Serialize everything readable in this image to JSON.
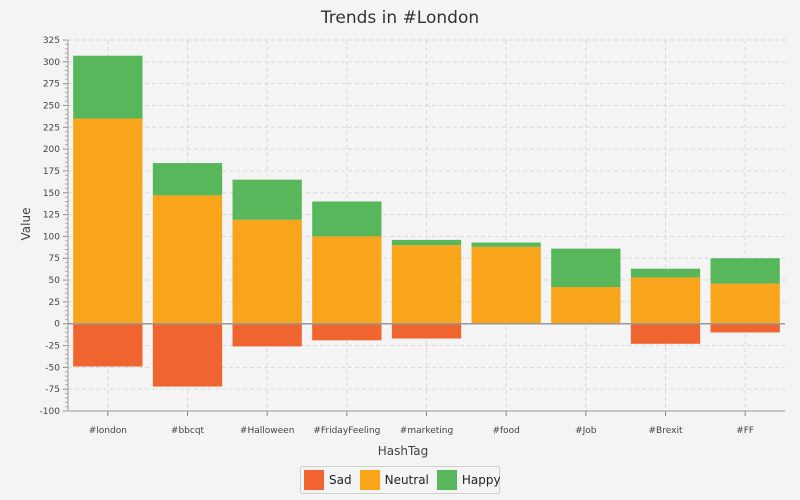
{
  "chart_data": {
    "type": "bar",
    "stacked": true,
    "title": "Trends in #London",
    "xlabel": "HashTag",
    "ylabel": "Value",
    "ylim": [
      -100,
      325
    ],
    "ytick_step": 25,
    "grid": true,
    "legend_position": "bottom",
    "categories": [
      "#london",
      "#bbcqt",
      "#Halloween",
      "#FridayFeeling",
      "#marketing",
      "#food",
      "#Job",
      "#Brexit",
      "#FF"
    ],
    "series": [
      {
        "name": "Sad",
        "color": "#f06430",
        "values": [
          -49,
          -72,
          -26,
          -19,
          -17,
          0,
          -1,
          -23,
          -10
        ]
      },
      {
        "name": "Neutral",
        "color": "#f9a51b",
        "values": [
          235,
          147,
          119,
          100,
          90,
          88,
          42,
          53,
          46
        ]
      },
      {
        "name": "Happy",
        "color": "#58b75a",
        "values": [
          72,
          37,
          46,
          40,
          6,
          5,
          44,
          10,
          29
        ]
      }
    ]
  }
}
